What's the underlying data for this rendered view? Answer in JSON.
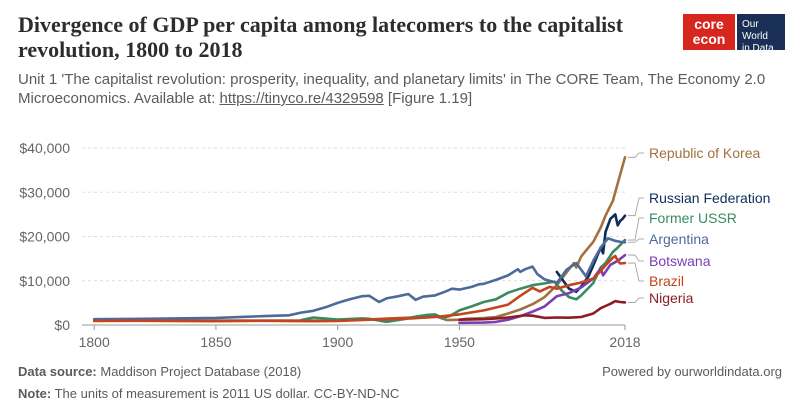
{
  "header": {
    "title": "Divergence of GDP per capita among latecomers to the capitalist revolution, 1800 to 2018",
    "subtitle_line1": "Unit 1 'The capitalist revolution: prosperity, inequality, and planetary limits' in The CORE Team, The Economy 2.0",
    "subtitle_line2_prefix": "Microeconomics. Available at: ",
    "subtitle_link": "https://tinyco.re/4329598",
    "subtitle_line2_suffix": " [Figure 1.19]"
  },
  "logos": {
    "core_line1": "core",
    "core_line2": "econ",
    "owid_line1": "Our World",
    "owid_line2": "in Data"
  },
  "footer": {
    "source_label": "Data source:",
    "source_text": " Maddison Project Database (2018)",
    "note_label": "Note:",
    "note_text": " The units of measurement is 2011 US dollar. CC-BY-ND-NC",
    "powered": "Powered by ourworldindata.org"
  },
  "chart_data": {
    "type": "line",
    "xlim": [
      1795,
      2018
    ],
    "ylim": [
      0,
      40000
    ],
    "x_ticks": [
      "1800",
      "1850",
      "1900",
      "1950",
      "2018"
    ],
    "x_tick_values": [
      1800,
      1850,
      1900,
      1950,
      2018
    ],
    "y_ticks": [
      "$0",
      "$10,000",
      "$20,000",
      "$30,000",
      "$40,000"
    ],
    "y_tick_values": [
      0,
      10000,
      20000,
      30000,
      40000
    ],
    "grid": "horizontal dashed",
    "series": [
      {
        "name": "Republic of Korea",
        "color": "#a2713f",
        "points": [
          [
            1820,
            1000
          ],
          [
            1870,
            1000
          ],
          [
            1900,
            1050
          ],
          [
            1911,
            1200
          ],
          [
            1920,
            1450
          ],
          [
            1930,
            1700
          ],
          [
            1940,
            2000
          ],
          [
            1945,
            1100
          ],
          [
            1950,
            1200
          ],
          [
            1953,
            1400
          ],
          [
            1960,
            1550
          ],
          [
            1965,
            1800
          ],
          [
            1970,
            2600
          ],
          [
            1975,
            3500
          ],
          [
            1980,
            4700
          ],
          [
            1985,
            6300
          ],
          [
            1990,
            9000
          ],
          [
            1995,
            12600
          ],
          [
            1997,
            14000
          ],
          [
            1998,
            13000
          ],
          [
            2000,
            15500
          ],
          [
            2005,
            18800
          ],
          [
            2008,
            22000
          ],
          [
            2010,
            24700
          ],
          [
            2013,
            28000
          ],
          [
            2015,
            32000
          ],
          [
            2018,
            37900
          ]
        ]
      },
      {
        "name": "Russian Federation",
        "color": "#0b2f5c",
        "points": [
          [
            1990,
            12000
          ],
          [
            1995,
            8200
          ],
          [
            1998,
            7500
          ],
          [
            2000,
            8700
          ],
          [
            2003,
            11000
          ],
          [
            2005,
            13500
          ],
          [
            2008,
            17500
          ],
          [
            2009,
            16200
          ],
          [
            2010,
            21000
          ],
          [
            2012,
            24000
          ],
          [
            2014,
            25000
          ],
          [
            2015,
            22500
          ],
          [
            2016,
            23500
          ],
          [
            2017,
            24000
          ],
          [
            2018,
            24700
          ]
        ]
      },
      {
        "name": "Former USSR",
        "color": "#3a8a63",
        "points": [
          [
            1885,
            1100
          ],
          [
            1890,
            1700
          ],
          [
            1900,
            1250
          ],
          [
            1910,
            1500
          ],
          [
            1913,
            1400
          ],
          [
            1920,
            700
          ],
          [
            1928,
            1400
          ],
          [
            1932,
            1900
          ],
          [
            1937,
            2300
          ],
          [
            1940,
            2400
          ],
          [
            1943,
            1600
          ],
          [
            1946,
            2000
          ],
          [
            1950,
            3300
          ],
          [
            1955,
            4200
          ],
          [
            1960,
            5200
          ],
          [
            1965,
            5800
          ],
          [
            1970,
            7300
          ],
          [
            1975,
            8200
          ],
          [
            1980,
            9000
          ],
          [
            1985,
            9400
          ],
          [
            1989,
            9800
          ],
          [
            1992,
            7800
          ],
          [
            1995,
            6300
          ],
          [
            1998,
            5800
          ],
          [
            2000,
            6700
          ],
          [
            2005,
            9500
          ],
          [
            2008,
            13000
          ],
          [
            2010,
            14000
          ],
          [
            2013,
            16500
          ],
          [
            2015,
            17500
          ],
          [
            2018,
            19200
          ]
        ]
      },
      {
        "name": "Argentina",
        "color": "#4c6a9c",
        "points": [
          [
            1800,
            1300
          ],
          [
            1820,
            1400
          ],
          [
            1850,
            1600
          ],
          [
            1870,
            2000
          ],
          [
            1880,
            2200
          ],
          [
            1885,
            2800
          ],
          [
            1890,
            3200
          ],
          [
            1895,
            4000
          ],
          [
            1900,
            5000
          ],
          [
            1905,
            5800
          ],
          [
            1910,
            6500
          ],
          [
            1913,
            6600
          ],
          [
            1917,
            5200
          ],
          [
            1920,
            6000
          ],
          [
            1925,
            6500
          ],
          [
            1929,
            7000
          ],
          [
            1932,
            5700
          ],
          [
            1935,
            6400
          ],
          [
            1940,
            6700
          ],
          [
            1944,
            7500
          ],
          [
            1947,
            8200
          ],
          [
            1950,
            8000
          ],
          [
            1955,
            8600
          ],
          [
            1958,
            9200
          ],
          [
            1960,
            9300
          ],
          [
            1965,
            10200
          ],
          [
            1970,
            11200
          ],
          [
            1974,
            12600
          ],
          [
            1975,
            12000
          ],
          [
            1977,
            12600
          ],
          [
            1980,
            13200
          ],
          [
            1982,
            11500
          ],
          [
            1985,
            10300
          ],
          [
            1989,
            9700
          ],
          [
            1990,
            9500
          ],
          [
            1994,
            12500
          ],
          [
            1998,
            14000
          ],
          [
            2002,
            11000
          ],
          [
            2005,
            14500
          ],
          [
            2008,
            17500
          ],
          [
            2011,
            19600
          ],
          [
            2014,
            19000
          ],
          [
            2016,
            18800
          ],
          [
            2018,
            18700
          ]
        ]
      },
      {
        "name": "Botswana",
        "color": "#7c3eb3",
        "points": [
          [
            1950,
            500
          ],
          [
            1960,
            550
          ],
          [
            1965,
            700
          ],
          [
            1970,
            1200
          ],
          [
            1975,
            2000
          ],
          [
            1980,
            3000
          ],
          [
            1985,
            4200
          ],
          [
            1990,
            6500
          ],
          [
            1995,
            7200
          ],
          [
            2000,
            8500
          ],
          [
            2005,
            10500
          ],
          [
            2008,
            12800
          ],
          [
            2009,
            11200
          ],
          [
            2012,
            13600
          ],
          [
            2015,
            14500
          ],
          [
            2018,
            15800
          ]
        ]
      },
      {
        "name": "Brazil",
        "color": "#c4441b",
        "points": [
          [
            1800,
            900
          ],
          [
            1820,
            950
          ],
          [
            1850,
            850
          ],
          [
            1870,
            950
          ],
          [
            1890,
            850
          ],
          [
            1900,
            900
          ],
          [
            1913,
            1200
          ],
          [
            1920,
            1300
          ],
          [
            1930,
            1500
          ],
          [
            1940,
            1800
          ],
          [
            1950,
            2400
          ],
          [
            1960,
            3300
          ],
          [
            1970,
            4600
          ],
          [
            1975,
            6600
          ],
          [
            1980,
            8400
          ],
          [
            1983,
            7600
          ],
          [
            1987,
            8600
          ],
          [
            1990,
            8200
          ],
          [
            1995,
            9000
          ],
          [
            2000,
            9600
          ],
          [
            2005,
            10500
          ],
          [
            2008,
            12200
          ],
          [
            2010,
            13500
          ],
          [
            2013,
            15200
          ],
          [
            2014,
            15600
          ],
          [
            2015,
            14600
          ],
          [
            2016,
            13900
          ],
          [
            2018,
            14000
          ]
        ]
      },
      {
        "name": "Nigeria",
        "color": "#8b1d24",
        "points": [
          [
            1950,
            1200
          ],
          [
            1960,
            1300
          ],
          [
            1965,
            1500
          ],
          [
            1970,
            1700
          ],
          [
            1977,
            2200
          ],
          [
            1980,
            2100
          ],
          [
            1985,
            1600
          ],
          [
            1990,
            1700
          ],
          [
            1995,
            1650
          ],
          [
            2000,
            1800
          ],
          [
            2005,
            2600
          ],
          [
            2008,
            3800
          ],
          [
            2010,
            4300
          ],
          [
            2012,
            4800
          ],
          [
            2014,
            5400
          ],
          [
            2016,
            5200
          ],
          [
            2018,
            5100
          ]
        ]
      }
    ]
  }
}
